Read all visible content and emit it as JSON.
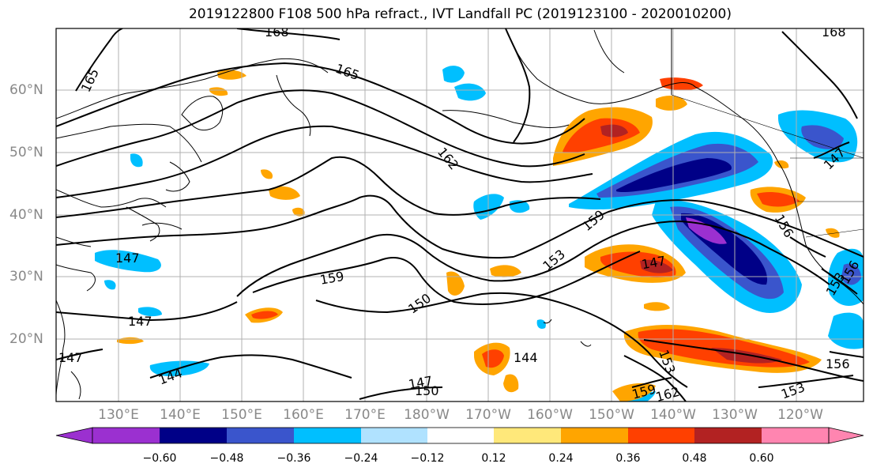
{
  "title": "2019122800 F108 500 hPa refract., IVT Landfall PC (2019123100 - 2020010200)",
  "lat_labels": [
    "60°N",
    "50°N",
    "40°N",
    "30°N",
    "20°N"
  ],
  "lon_labels": [
    "130°E",
    "140°E",
    "150°E",
    "160°E",
    "170°E",
    "180°W",
    "170°W",
    "160°W",
    "150°W",
    "140°W",
    "130°W",
    "120°W"
  ],
  "contour_labels": [
    "168",
    "165",
    "165",
    "162",
    "159",
    "159",
    "153",
    "147",
    "150",
    "147",
    "144",
    "147",
    "150",
    "144",
    "153",
    "159",
    "162",
    "156",
    "153",
    "147",
    "147",
    "156",
    "153",
    "156"
  ],
  "colorbar": {
    "ticks": [
      "−0.60",
      "−0.48",
      "−0.36",
      "−0.24",
      "−0.12",
      "0.12",
      "0.24",
      "0.36",
      "0.48",
      "0.60"
    ],
    "colors": [
      "#9b30d0",
      "#000087",
      "#3a55cc",
      "#00bfff",
      "#b0e2ff",
      "#ffffff",
      "#ffe87a",
      "#ffa500",
      "#ff4000",
      "#b22222",
      "#ff85b0"
    ]
  },
  "colors": {
    "contour": "#000000",
    "coast": "#000000",
    "grid": "#b0b0b0",
    "tick_label": "#888888"
  }
}
